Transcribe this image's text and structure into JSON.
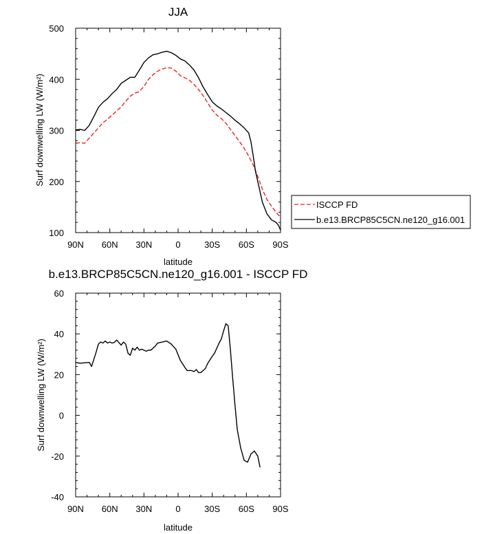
{
  "chart_data": [
    {
      "type": "line",
      "title": "JJA",
      "xlabel": "latitude",
      "ylabel": "Surf downwelling LW (W/m²)",
      "xlim": [
        90,
        -90
      ],
      "ylim": [
        100,
        500
      ],
      "xticks": [
        90,
        60,
        30,
        0,
        -30,
        -60,
        -90
      ],
      "xtick_labels": [
        "90N",
        "60N",
        "30N",
        "0",
        "30S",
        "60S",
        "90S"
      ],
      "yticks": [
        100,
        200,
        300,
        400,
        500
      ],
      "ytick_labels": [
        "100",
        "200",
        "300",
        "400",
        "500"
      ],
      "grid": false,
      "legend_position": "outside-right",
      "series": [
        {
          "name": "ISCCP FD",
          "color": "#e8241f",
          "dash": "dashed",
          "points": [
            [
              90,
              275
            ],
            [
              86,
              276
            ],
            [
              82,
              275
            ],
            [
              78,
              285
            ],
            [
              74,
              295
            ],
            [
              70,
              305
            ],
            [
              66,
              315
            ],
            [
              62,
              322
            ],
            [
              58,
              330
            ],
            [
              54,
              338
            ],
            [
              50,
              346
            ],
            [
              46,
              357
            ],
            [
              42,
              367
            ],
            [
              38,
              373
            ],
            [
              34,
              376
            ],
            [
              30,
              386
            ],
            [
              26,
              400
            ],
            [
              22,
              409
            ],
            [
              18,
              416
            ],
            [
              14,
              420
            ],
            [
              10,
              423
            ],
            [
              6,
              422
            ],
            [
              2,
              416
            ],
            [
              -2,
              407
            ],
            [
              -6,
              403
            ],
            [
              -10,
              398
            ],
            [
              -14,
              390
            ],
            [
              -18,
              380
            ],
            [
              -22,
              368
            ],
            [
              -26,
              354
            ],
            [
              -30,
              340
            ],
            [
              -34,
              330
            ],
            [
              -38,
              323
            ],
            [
              -42,
              314
            ],
            [
              -46,
              302
            ],
            [
              -50,
              290
            ],
            [
              -54,
              278
            ],
            [
              -58,
              265
            ],
            [
              -62,
              250
            ],
            [
              -66,
              232
            ],
            [
              -70,
              210
            ],
            [
              -74,
              185
            ],
            [
              -78,
              165
            ],
            [
              -82,
              152
            ],
            [
              -86,
              140
            ],
            [
              -90,
              130
            ]
          ]
        },
        {
          "name": "b.e13.BRCP85C5CN.ne120_g16.001",
          "color": "#000000",
          "dash": "solid",
          "points": [
            [
              90,
              301
            ],
            [
              86,
              302
            ],
            [
              82,
              300
            ],
            [
              78,
              310
            ],
            [
              74,
              327
            ],
            [
              70,
              345
            ],
            [
              66,
              355
            ],
            [
              62,
              362
            ],
            [
              58,
              372
            ],
            [
              54,
              380
            ],
            [
              50,
              392
            ],
            [
              46,
              398
            ],
            [
              42,
              404
            ],
            [
              38,
              404
            ],
            [
              34,
              418
            ],
            [
              30,
              433
            ],
            [
              26,
              442
            ],
            [
              22,
              448
            ],
            [
              18,
              450
            ],
            [
              14,
              453
            ],
            [
              10,
              455
            ],
            [
              6,
              452
            ],
            [
              2,
              447
            ],
            [
              -2,
              440
            ],
            [
              -6,
              436
            ],
            [
              -10,
              428
            ],
            [
              -14,
              418
            ],
            [
              -18,
              403
            ],
            [
              -22,
              385
            ],
            [
              -26,
              370
            ],
            [
              -30,
              356
            ],
            [
              -34,
              348
            ],
            [
              -38,
              342
            ],
            [
              -42,
              335
            ],
            [
              -46,
              328
            ],
            [
              -50,
              320
            ],
            [
              -54,
              313
            ],
            [
              -58,
              305
            ],
            [
              -62,
              295
            ],
            [
              -64,
              278
            ],
            [
              -66,
              250
            ],
            [
              -68,
              220
            ],
            [
              -70,
              200
            ],
            [
              -74,
              160
            ],
            [
              -78,
              137
            ],
            [
              -82,
              125
            ],
            [
              -86,
              120
            ],
            [
              -88,
              115
            ],
            [
              -90,
              105
            ]
          ]
        }
      ]
    },
    {
      "type": "line",
      "title": "b.e13.BRCP85C5CN.ne120_g16.001 - ISCCP FD",
      "xlabel": "latitude",
      "ylabel": "Surf downwelling LW (W/m²)",
      "xlim": [
        90,
        -90
      ],
      "ylim": [
        -40,
        60
      ],
      "xticks": [
        90,
        60,
        30,
        0,
        -30,
        -60,
        -90
      ],
      "xtick_labels": [
        "90N",
        "60N",
        "30N",
        "0",
        "30S",
        "60S",
        "90S"
      ],
      "yticks": [
        -40,
        -20,
        0,
        20,
        40,
        60
      ],
      "ytick_labels": [
        "-40",
        "-20",
        "0",
        "20",
        "40",
        "60"
      ],
      "grid": false,
      "series": [
        {
          "color": "#000000",
          "dash": "solid",
          "points": [
            [
              90,
              26
            ],
            [
              86,
              25.6
            ],
            [
              82,
              25.8
            ],
            [
              78,
              26
            ],
            [
              76,
              24
            ],
            [
              72,
              31
            ],
            [
              70,
              35
            ],
            [
              68,
              36
            ],
            [
              66,
              35.5
            ],
            [
              64,
              36.5
            ],
            [
              62,
              35.5
            ],
            [
              60,
              36
            ],
            [
              58,
              35.5
            ],
            [
              56,
              35.8
            ],
            [
              54,
              37
            ],
            [
              50,
              34.5
            ],
            [
              48,
              36
            ],
            [
              46,
              35
            ],
            [
              44,
              30.5
            ],
            [
              42,
              29.5
            ],
            [
              40,
              33
            ],
            [
              38,
              32
            ],
            [
              36,
              33.5
            ],
            [
              34,
              32
            ],
            [
              32,
              32.5
            ],
            [
              30,
              32
            ],
            [
              28,
              31.5
            ],
            [
              26,
              32
            ],
            [
              24,
              32
            ],
            [
              22,
              33
            ],
            [
              20,
              34
            ],
            [
              18,
              35.5
            ],
            [
              14,
              36
            ],
            [
              10,
              36.5
            ],
            [
              6,
              35
            ],
            [
              2,
              32.5
            ],
            [
              -2,
              27
            ],
            [
              -6,
              23.5
            ],
            [
              -8,
              22
            ],
            [
              -12,
              22
            ],
            [
              -14,
              21.5
            ],
            [
              -16,
              22.5
            ],
            [
              -18,
              21
            ],
            [
              -20,
              21
            ],
            [
              -22,
              22
            ],
            [
              -24,
              23
            ],
            [
              -26,
              25.5
            ],
            [
              -30,
              29
            ],
            [
              -32,
              30.5
            ],
            [
              -36,
              35.5
            ],
            [
              -38,
              37.5
            ],
            [
              -40,
              41.5
            ],
            [
              -42,
              45
            ],
            [
              -44,
              44
            ],
            [
              -46,
              32
            ],
            [
              -48,
              18
            ],
            [
              -50,
              5
            ],
            [
              -52,
              -7
            ],
            [
              -55,
              -16
            ],
            [
              -58,
              -22
            ],
            [
              -61,
              -23
            ],
            [
              -64,
              -19
            ],
            [
              -67,
              -17.5
            ],
            [
              -70,
              -20
            ],
            [
              -72,
              -25.5
            ]
          ]
        }
      ]
    }
  ]
}
